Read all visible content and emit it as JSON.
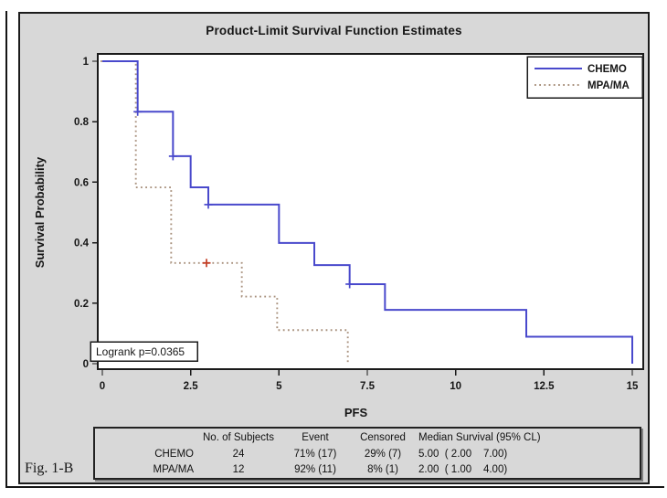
{
  "figure_label": "Fig. 1-B",
  "colors": {
    "panel_bg": "#d8d8d8",
    "plot_bg": "#ffffff",
    "frame": "#1a1a1a",
    "chemo_blue": "#4949cc",
    "mpa_tan": "#a8907c",
    "censor_red": "#c23b22",
    "text": "#161616"
  },
  "chart_data": {
    "type": "line",
    "subtype": "kaplan-meier-step",
    "title": "Product-Limit Survival Function Estimates",
    "xlabel": "PFS",
    "ylabel": "Survival Probability",
    "xlim": [
      0,
      15
    ],
    "ylim": [
      0,
      1
    ],
    "xticks": [
      0,
      2.5,
      5,
      7.5,
      10,
      12.5,
      15
    ],
    "yticks": [
      0,
      0.2,
      0.4,
      0.6,
      0.8,
      1
    ],
    "grid": false,
    "legend_position": "top-right",
    "annotation": "Logrank p=0.0365",
    "series": [
      {
        "name": "CHEMO",
        "style": "solid",
        "color": "#4949cc",
        "x": [
          0,
          1,
          2,
          2.5,
          3,
          5,
          6,
          7,
          8,
          12,
          15
        ],
        "y": [
          1,
          0.833,
          0.686,
          0.583,
          0.526,
          0.399,
          0.326,
          0.263,
          0.178,
          0.089,
          0
        ],
        "censor_points": [
          [
            1,
            0.833
          ],
          [
            2,
            0.686
          ],
          [
            3,
            0.526
          ],
          [
            7,
            0.263
          ]
        ],
        "censor_color": "#4949cc"
      },
      {
        "name": "MPA/MA",
        "style": "dotted",
        "color": "#a8907c",
        "x": [
          0,
          1,
          2,
          4,
          5,
          7
        ],
        "y": [
          1,
          0.583,
          0.333,
          0.222,
          0.111,
          0
        ],
        "censor_points": [
          [
            3,
            0.333
          ]
        ],
        "censor_color": "#c23b22"
      }
    ]
  },
  "summary_table": {
    "headers": [
      "",
      "No. of Subjects",
      "Event",
      "Censored",
      "Median Survival (95% CL)"
    ],
    "rows": [
      {
        "group": "CHEMO",
        "subjects": "24",
        "event": "71% (17)",
        "censored": "29% (7)",
        "median": "5.00  ( 2.00    7.00)"
      },
      {
        "group": "MPA/MA",
        "subjects": "12",
        "event": "92% (11)",
        "censored": "8% (1)",
        "median": "2.00  ( 1.00    4.00)"
      }
    ]
  }
}
